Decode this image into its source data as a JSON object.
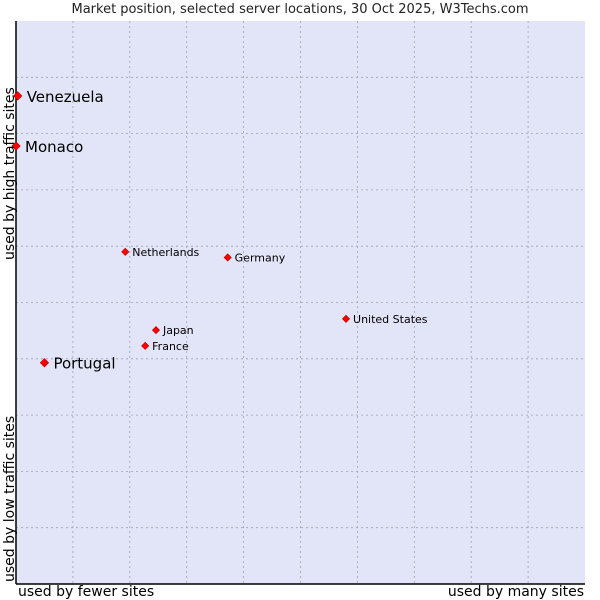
{
  "chart_data": {
    "type": "scatter",
    "title": "Market position, selected server locations, 30 Oct 2025, W3Techs.com",
    "xlabel_low": "used by fewer sites",
    "xlabel_high": "used by many sites",
    "ylabel_low": "used by low traffic sites",
    "ylabel_high": "used by high traffic sites",
    "xlim": [
      0,
      10
    ],
    "ylim": [
      0,
      10
    ],
    "grid": true,
    "colors": {
      "background": "#e2e4f8",
      "grid": "#a0a0b8",
      "point": "#ff0000",
      "axis": "#000000"
    },
    "points": [
      {
        "name": "Venezuela",
        "x": 0.03,
        "y": 8.67,
        "size": "large"
      },
      {
        "name": "Monaco",
        "x": 0.0,
        "y": 7.78,
        "size": "large"
      },
      {
        "name": "Netherlands",
        "x": 1.92,
        "y": 5.9,
        "size": "small"
      },
      {
        "name": "Germany",
        "x": 3.72,
        "y": 5.8,
        "size": "small"
      },
      {
        "name": "United States",
        "x": 5.8,
        "y": 4.71,
        "size": "small"
      },
      {
        "name": "Japan",
        "x": 2.46,
        "y": 4.51,
        "size": "small"
      },
      {
        "name": "France",
        "x": 2.27,
        "y": 4.23,
        "size": "small"
      },
      {
        "name": "Portugal",
        "x": 0.5,
        "y": 3.93,
        "size": "large"
      }
    ]
  }
}
